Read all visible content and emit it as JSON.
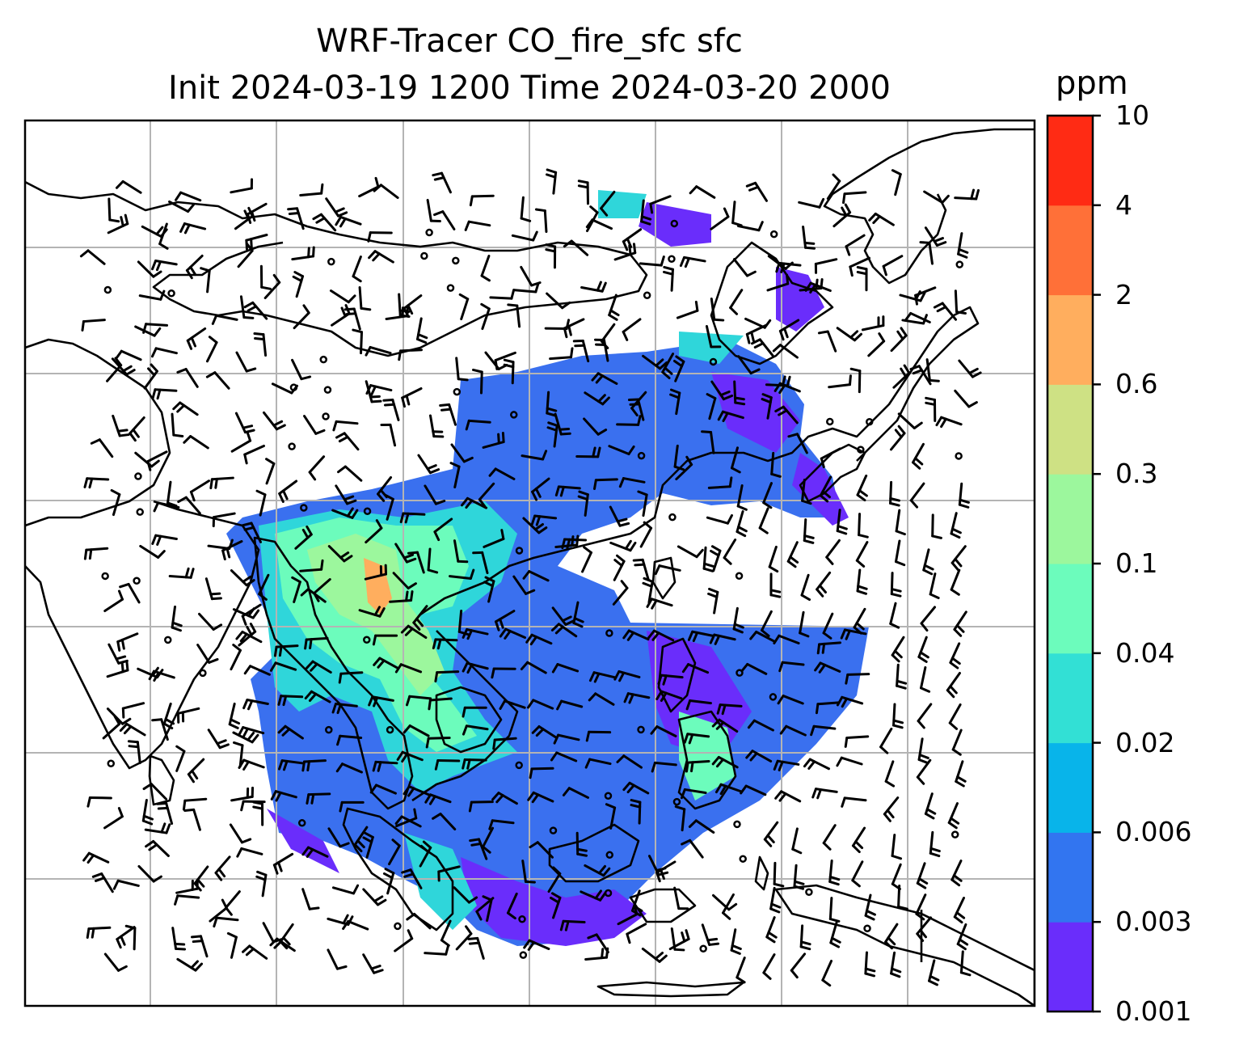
{
  "title": {
    "line1": "WRF-Tracer CO_fire_sfc sfc",
    "line2": "Init 2024-03-19 1200 Time 2024-03-20 2000"
  },
  "colorbar": {
    "unit": "ppm",
    "ticks": [
      "0.001",
      "0.003",
      "0.006",
      "0.02",
      "0.04",
      "0.1",
      "0.3",
      "0.6",
      "2",
      "4",
      "10"
    ],
    "colors": [
      "#6a2dfb",
      "#3275f0",
      "#08b4ea",
      "#32e0d5",
      "#6cfcbc",
      "#9cf79d",
      "#cee184",
      "#ffae5e",
      "#ff7038",
      "#ff2b14"
    ]
  },
  "map": {
    "background": "#ffffff",
    "gridline_color": "#b4b4b4",
    "coastline_color": "#000000"
  }
}
